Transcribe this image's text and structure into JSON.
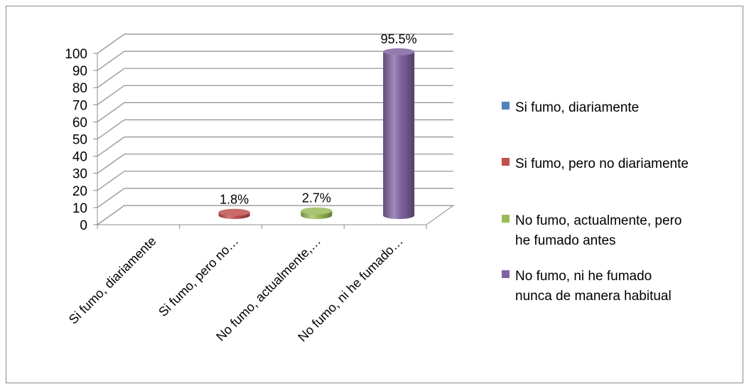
{
  "chart_data": {
    "type": "bar",
    "subtype": "3d-cylinder",
    "title": "",
    "xlabel": "",
    "ylabel": "",
    "ylim": [
      0,
      100
    ],
    "yticks": [
      0,
      10,
      20,
      30,
      40,
      50,
      60,
      70,
      80,
      90,
      100
    ],
    "grid": true,
    "legend_position": "right",
    "categories": [
      "Si fumo, diariamente",
      "Si fumo, pero no…",
      "No fumo, actualmente,…",
      "No fumo, ni he fumado…"
    ],
    "values": [
      0,
      1.8,
      2.7,
      95.5
    ],
    "data_labels": [
      "",
      "1.8%",
      "2.7%",
      "95.5%"
    ],
    "colors": [
      "#4f81bd",
      "#c0504d",
      "#9bbb59",
      "#8064a2"
    ],
    "legend": [
      {
        "lines": [
          "Si fumo, diariamente"
        ],
        "color": "#4f81bd"
      },
      {
        "lines": [
          "Si fumo, pero no diariamente"
        ],
        "color": "#c0504d"
      },
      {
        "lines": [
          "No fumo, actualmente, pero",
          "he fumado antes"
        ],
        "color": "#9bbb59"
      },
      {
        "lines": [
          "No fumo, ni he fumado",
          "nunca de manera habitual"
        ],
        "color": "#8064a2"
      }
    ]
  }
}
